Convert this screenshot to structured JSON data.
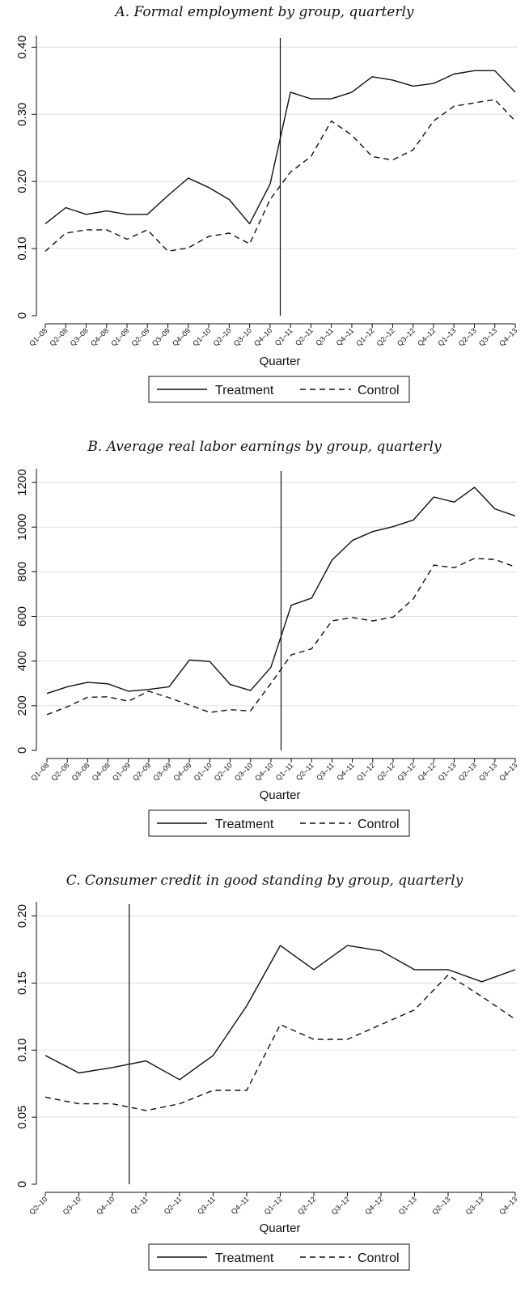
{
  "chart_data": [
    {
      "type": "line",
      "title": "A. Formal employment by group, quarterly",
      "xlabel": "Quarter",
      "ylabel": "",
      "categories": [
        "Q1–08",
        "Q2–08",
        "Q3–08",
        "Q4–08",
        "Q1–09",
        "Q2–09",
        "Q3–09",
        "Q4–09",
        "Q1–10",
        "Q2–10",
        "Q3–10",
        "Q4–10",
        "Q1–11",
        "Q2–11",
        "Q3–11",
        "Q4–11",
        "Q1–12",
        "Q2–12",
        "Q3–12",
        "Q4–12",
        "Q1–13",
        "Q2–13",
        "Q3–13",
        "Q4–13"
      ],
      "series": [
        {
          "name": "Treatment",
          "style": "solid",
          "values": [
            0.137,
            0.161,
            0.151,
            0.156,
            0.151,
            0.151,
            0.179,
            0.205,
            0.191,
            0.173,
            0.137,
            0.196,
            0.333,
            0.323,
            0.323,
            0.333,
            0.356,
            0.351,
            0.342,
            0.346,
            0.36,
            0.365,
            0.365,
            0.333
          ]
        },
        {
          "name": "Control",
          "style": "dashed",
          "values": [
            0.096,
            0.123,
            0.128,
            0.128,
            0.114,
            0.128,
            0.096,
            0.101,
            0.118,
            0.123,
            0.107,
            0.173,
            0.214,
            0.237,
            0.29,
            0.269,
            0.237,
            0.232,
            0.247,
            0.29,
            0.312,
            0.317,
            0.322,
            0.29
          ]
        }
      ],
      "yticks": [
        0,
        0.1,
        0.2,
        0.3,
        0.4
      ],
      "ytick_labels": [
        "0",
        "0.10",
        "0.20",
        "0.30",
        "0.40"
      ],
      "ylim": [
        0,
        0.41
      ],
      "vline_after": "Q4–10",
      "grid": true,
      "legend": {
        "position": "bottom",
        "entries": [
          "Treatment",
          "Control"
        ]
      }
    },
    {
      "type": "line",
      "title": "B. Average real labor earnings by group, quarterly",
      "xlabel": "Quarter",
      "ylabel": "",
      "categories": [
        "Q1–08",
        "Q2–08",
        "Q3–08",
        "Q4–08",
        "Q1–09",
        "Q2–09",
        "Q3–09",
        "Q4–09",
        "Q1–10",
        "Q2–10",
        "Q3–10",
        "Q4–10",
        "Q1–11",
        "Q2–11",
        "Q3–11",
        "Q4–11",
        "Q1–12",
        "Q2–12",
        "Q3–12",
        "Q4–12",
        "Q1–13",
        "Q2–13",
        "Q3–13",
        "Q4–13"
      ],
      "series": [
        {
          "name": "Treatment",
          "style": "solid",
          "values": [
            255,
            285,
            305,
            298,
            265,
            273,
            285,
            405,
            398,
            295,
            268,
            372,
            650,
            682,
            852,
            940,
            980,
            1002,
            1032,
            1135,
            1112,
            1178,
            1082,
            1050
          ]
        },
        {
          "name": "Control",
          "style": "dashed",
          "values": [
            160,
            195,
            238,
            240,
            220,
            265,
            236,
            203,
            170,
            182,
            177,
            300,
            428,
            455,
            580,
            595,
            580,
            597,
            680,
            830,
            818,
            860,
            855,
            822
          ]
        }
      ],
      "yticks": [
        0,
        200,
        400,
        600,
        800,
        1000,
        1200
      ],
      "ytick_labels": [
        "0",
        "200",
        "400",
        "600",
        "800",
        "1000",
        "1200"
      ],
      "ylim": [
        0,
        1240
      ],
      "vline_after": "Q4–10",
      "grid": true,
      "legend": {
        "position": "bottom",
        "entries": [
          "Treatment",
          "Control"
        ]
      }
    },
    {
      "type": "line",
      "title": "C. Consumer credit in good standing by group, quarterly",
      "xlabel": "Quarter",
      "ylabel": "",
      "categories": [
        "Q2–10",
        "Q3–10",
        "Q4–10",
        "Q1–11",
        "Q2–11",
        "Q3–11",
        "Q4–11",
        "Q1–12",
        "Q2–12",
        "Q3–12",
        "Q4–12",
        "Q1–13",
        "Q2–13",
        "Q3–13",
        "Q4–13"
      ],
      "series": [
        {
          "name": "Treatment",
          "style": "solid",
          "values": [
            0.096,
            0.083,
            0.087,
            0.092,
            0.078,
            0.096,
            0.133,
            0.178,
            0.16,
            0.178,
            0.174,
            0.16,
            0.16,
            0.151,
            0.16
          ]
        },
        {
          "name": "Control",
          "style": "dashed",
          "values": [
            0.065,
            0.06,
            0.06,
            0.055,
            0.06,
            0.07,
            0.07,
            0.119,
            0.108,
            0.108,
            0.119,
            0.13,
            0.156,
            0.14,
            0.123
          ]
        }
      ],
      "yticks": [
        0,
        0.05,
        0.1,
        0.15,
        0.2
      ],
      "ytick_labels": [
        "0",
        "0.05",
        "0.10",
        "0.15",
        "0.20"
      ],
      "ylim": [
        0,
        0.207
      ],
      "vline_after": "Q4–10",
      "grid": true,
      "legend": {
        "position": "bottom",
        "entries": [
          "Treatment",
          "Control"
        ]
      }
    }
  ]
}
